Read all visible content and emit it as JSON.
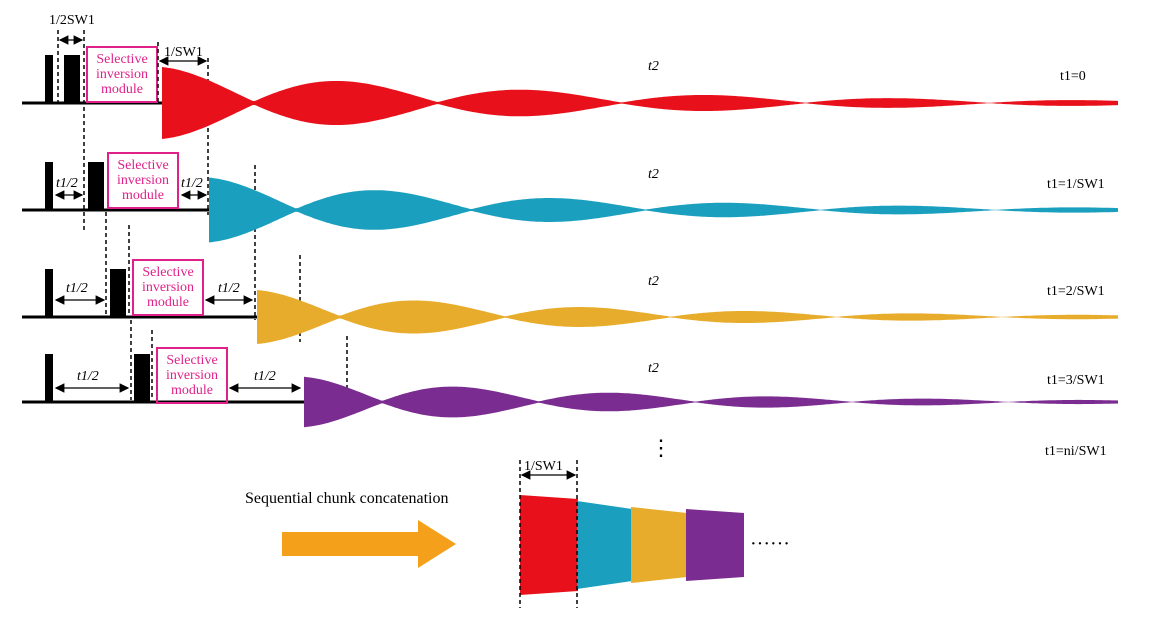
{
  "colors": {
    "red": "#e8101a",
    "teal": "#1aa0be",
    "gold": "#e8ac2c",
    "purple": "#7b2c91",
    "arrow": "#f5a01a",
    "module_border": "#e0218a",
    "module_text": "#e0218a"
  },
  "labels": {
    "half_sw1": "1/2SW1",
    "one_sw1_top": "1/SW1",
    "one_sw1_bottom": "1/SW1",
    "t1_half": "t1/2",
    "t2": "t2",
    "sequential": "Sequential chunk concatenation",
    "dots": "······",
    "vdots": "⋮"
  },
  "module_lines": [
    "Selective",
    "inversion",
    "module"
  ],
  "rows": [
    {
      "t1_label": "t1=0",
      "t1_value": "0",
      "color_key": "red"
    },
    {
      "t1_label": "t1=1/SW1",
      "t1_value": "1/SW1",
      "color_key": "teal"
    },
    {
      "t1_label": "t1=2/SW1",
      "t1_value": "2/SW1",
      "color_key": "gold"
    },
    {
      "t1_label": "t1=3/SW1",
      "t1_value": "3/SW1",
      "color_key": "purple"
    },
    {
      "t1_label": "t1=ni/SW1",
      "t1_value": "ni/SW1",
      "color_key": null
    }
  ],
  "concatenation_chunks": [
    "red",
    "teal",
    "gold",
    "purple"
  ]
}
